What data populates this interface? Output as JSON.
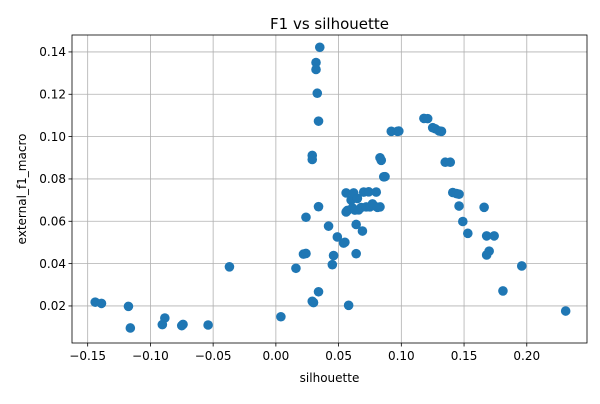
{
  "chart_data": {
    "type": "scatter",
    "title": "F1 vs silhouette",
    "xlabel": "silhouette",
    "ylabel": "external_f1_macro",
    "xlim": [
      -0.1625,
      0.248
    ],
    "ylim": [
      0.0025,
      0.148
    ],
    "x_ticks": [
      -0.15,
      -0.1,
      -0.05,
      0.0,
      0.05,
      0.1,
      0.15,
      0.2
    ],
    "x_tick_labels": [
      "−0.15",
      "−0.10",
      "−0.05",
      "0.00",
      "0.05",
      "0.10",
      "0.15",
      "0.20"
    ],
    "y_ticks": [
      0.02,
      0.04,
      0.06,
      0.08,
      0.1,
      0.12,
      0.14
    ],
    "y_tick_labels": [
      "0.02",
      "0.04",
      "0.06",
      "0.08",
      "0.10",
      "0.12",
      "0.14"
    ],
    "grid": true,
    "marker_color": "#1f77b4",
    "points": [
      {
        "x": -0.144,
        "y": 0.0218
      },
      {
        "x": -0.139,
        "y": 0.0212
      },
      {
        "x": -0.1175,
        "y": 0.0198
      },
      {
        "x": -0.116,
        "y": 0.0096
      },
      {
        "x": -0.0885,
        "y": 0.0143
      },
      {
        "x": -0.0905,
        "y": 0.0112
      },
      {
        "x": -0.074,
        "y": 0.0113
      },
      {
        "x": -0.075,
        "y": 0.0107
      },
      {
        "x": -0.054,
        "y": 0.011
      },
      {
        "x": -0.037,
        "y": 0.0385
      },
      {
        "x": 0.004,
        "y": 0.0149
      },
      {
        "x": 0.016,
        "y": 0.0378
      },
      {
        "x": 0.022,
        "y": 0.0445
      },
      {
        "x": 0.024,
        "y": 0.0448
      },
      {
        "x": 0.024,
        "y": 0.0619
      },
      {
        "x": 0.029,
        "y": 0.0222
      },
      {
        "x": 0.03,
        "y": 0.0216
      },
      {
        "x": 0.029,
        "y": 0.0911
      },
      {
        "x": 0.029,
        "y": 0.0892
      },
      {
        "x": 0.032,
        "y": 0.135
      },
      {
        "x": 0.032,
        "y": 0.1317
      },
      {
        "x": 0.033,
        "y": 0.1205
      },
      {
        "x": 0.034,
        "y": 0.1073
      },
      {
        "x": 0.035,
        "y": 0.1422
      },
      {
        "x": 0.034,
        "y": 0.0669
      },
      {
        "x": 0.034,
        "y": 0.0267
      },
      {
        "x": 0.042,
        "y": 0.0577
      },
      {
        "x": 0.045,
        "y": 0.0395
      },
      {
        "x": 0.046,
        "y": 0.0438
      },
      {
        "x": 0.049,
        "y": 0.0526
      },
      {
        "x": 0.054,
        "y": 0.0497
      },
      {
        "x": 0.055,
        "y": 0.0501
      },
      {
        "x": 0.056,
        "y": 0.0734
      },
      {
        "x": 0.056,
        "y": 0.0644
      },
      {
        "x": 0.057,
        "y": 0.0651
      },
      {
        "x": 0.058,
        "y": 0.0203
      },
      {
        "x": 0.06,
        "y": 0.07
      },
      {
        "x": 0.061,
        "y": 0.0663
      },
      {
        "x": 0.062,
        "y": 0.0734
      },
      {
        "x": 0.063,
        "y": 0.0653
      },
      {
        "x": 0.064,
        "y": 0.0447
      },
      {
        "x": 0.064,
        "y": 0.0585
      },
      {
        "x": 0.065,
        "y": 0.0708
      },
      {
        "x": 0.066,
        "y": 0.0654
      },
      {
        "x": 0.068,
        "y": 0.0665
      },
      {
        "x": 0.069,
        "y": 0.0554
      },
      {
        "x": 0.07,
        "y": 0.0738
      },
      {
        "x": 0.072,
        "y": 0.0668
      },
      {
        "x": 0.074,
        "y": 0.0739
      },
      {
        "x": 0.075,
        "y": 0.0668
      },
      {
        "x": 0.077,
        "y": 0.0682
      },
      {
        "x": 0.078,
        "y": 0.0674
      },
      {
        "x": 0.08,
        "y": 0.0738
      },
      {
        "x": 0.081,
        "y": 0.0666
      },
      {
        "x": 0.083,
        "y": 0.0668
      },
      {
        "x": 0.083,
        "y": 0.09
      },
      {
        "x": 0.084,
        "y": 0.0888
      },
      {
        "x": 0.086,
        "y": 0.081
      },
      {
        "x": 0.087,
        "y": 0.0811
      },
      {
        "x": 0.092,
        "y": 0.1025
      },
      {
        "x": 0.097,
        "y": 0.1025
      },
      {
        "x": 0.098,
        "y": 0.1026
      },
      {
        "x": 0.118,
        "y": 0.1086
      },
      {
        "x": 0.121,
        "y": 0.1085
      },
      {
        "x": 0.125,
        "y": 0.1042
      },
      {
        "x": 0.127,
        "y": 0.1037
      },
      {
        "x": 0.13,
        "y": 0.1027
      },
      {
        "x": 0.132,
        "y": 0.1025
      },
      {
        "x": 0.135,
        "y": 0.0879
      },
      {
        "x": 0.139,
        "y": 0.0879
      },
      {
        "x": 0.141,
        "y": 0.0736
      },
      {
        "x": 0.144,
        "y": 0.0731
      },
      {
        "x": 0.146,
        "y": 0.0728
      },
      {
        "x": 0.146,
        "y": 0.0672
      },
      {
        "x": 0.149,
        "y": 0.0599
      },
      {
        "x": 0.153,
        "y": 0.0543
      },
      {
        "x": 0.166,
        "y": 0.0666
      },
      {
        "x": 0.168,
        "y": 0.0531
      },
      {
        "x": 0.168,
        "y": 0.0441
      },
      {
        "x": 0.17,
        "y": 0.0459
      },
      {
        "x": 0.174,
        "y": 0.0531
      },
      {
        "x": 0.181,
        "y": 0.0271
      },
      {
        "x": 0.196,
        "y": 0.0389
      },
      {
        "x": 0.231,
        "y": 0.0176
      }
    ]
  }
}
